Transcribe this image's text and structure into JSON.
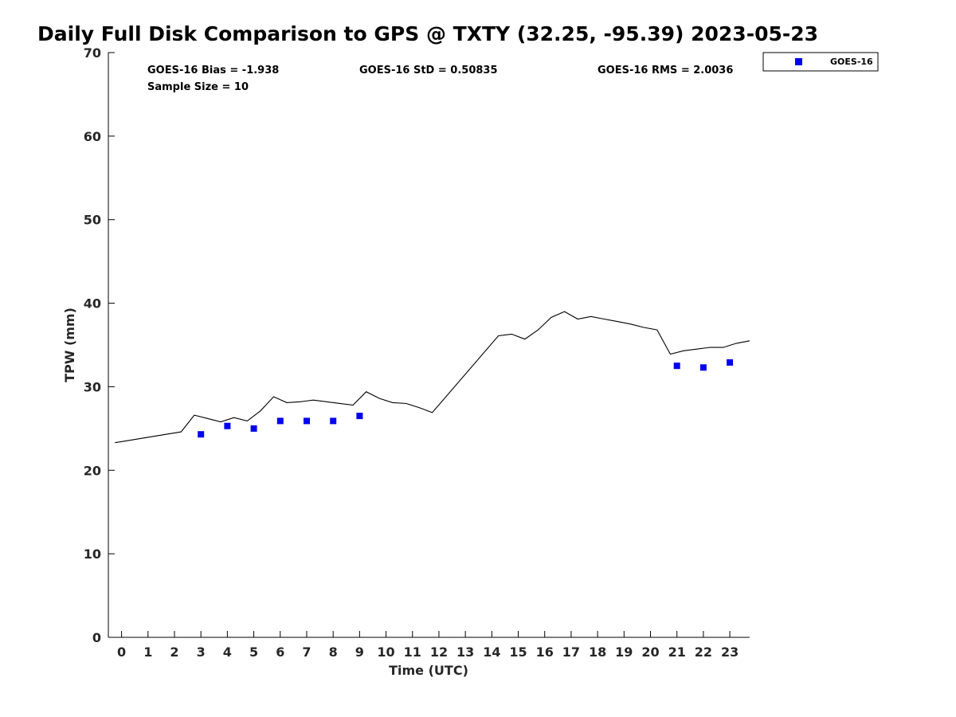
{
  "chart_data": {
    "type": "scatter",
    "title": "Daily Full Disk Comparison to GPS @ TXTY (32.25, -95.39) 2023-05-23",
    "xlabel": "Time (UTC)",
    "ylabel": "TPW (mm)",
    "xlim": [
      -0.5,
      23.75
    ],
    "ylim": [
      0,
      70
    ],
    "xticks": [
      "0",
      "1",
      "2",
      "3",
      "4",
      "5",
      "6",
      "7",
      "8",
      "9",
      "10",
      "11",
      "12",
      "13",
      "14",
      "15",
      "16",
      "17",
      "18",
      "19",
      "20",
      "21",
      "22",
      "23"
    ],
    "yticks": [
      "0",
      "10",
      "20",
      "30",
      "40",
      "50",
      "60",
      "70"
    ],
    "stats": {
      "bias": "GOES-16 Bias = -1.938",
      "std": "GOES-16 StD = 0.50835",
      "rms": "GOES-16 RMS = 2.0036",
      "sample": "Sample Size = 10"
    },
    "legend": {
      "label": "GOES-16",
      "location": "top-right, outside plot",
      "color": "#0000ee"
    },
    "series": [
      {
        "name": "GPS",
        "kind": "line",
        "color": "#000000",
        "x": [
          -0.25,
          2.25,
          2.75,
          3.25,
          3.75,
          4.25,
          4.75,
          5.25,
          5.75,
          6.25,
          6.75,
          7.25,
          7.75,
          8.25,
          8.75,
          9.25,
          9.75,
          10.25,
          10.75,
          11.25,
          11.75,
          14.25,
          14.75,
          15.25,
          15.75,
          16.25,
          16.75,
          17.25,
          17.75,
          18.25,
          18.75,
          19.25,
          19.75,
          20.25,
          20.75,
          21.25,
          21.75,
          22.25,
          22.75,
          23.25,
          23.75
        ],
        "y": [
          23.3,
          24.6,
          26.6,
          26.2,
          25.8,
          26.3,
          25.9,
          27.1,
          28.8,
          28.1,
          28.2,
          28.4,
          28.2,
          28.0,
          27.8,
          29.4,
          28.6,
          28.1,
          28.0,
          27.5,
          26.9,
          36.1,
          36.3,
          35.7,
          36.8,
          38.3,
          39.0,
          38.1,
          38.4,
          38.1,
          37.8,
          37.5,
          37.1,
          36.8,
          33.9,
          34.3,
          34.5,
          34.7,
          34.7,
          35.2,
          35.5
        ]
      },
      {
        "name": "GOES-16",
        "kind": "scatter",
        "color": "#0000ee",
        "x": [
          3,
          4,
          5,
          6,
          7,
          8,
          9,
          21,
          22,
          23
        ],
        "y": [
          24.3,
          25.3,
          25.0,
          25.9,
          25.9,
          25.9,
          26.5,
          32.5,
          32.3,
          32.9
        ]
      }
    ]
  }
}
